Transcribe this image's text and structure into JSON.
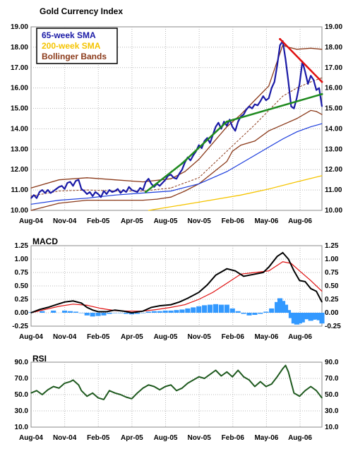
{
  "chart_data": [
    {
      "type": "line",
      "title": "Gold Currency Index",
      "ylim": [
        10,
        19
      ],
      "yticks": [
        "10.00",
        "11.00",
        "12.00",
        "13.00",
        "14.00",
        "15.00",
        "16.00",
        "17.00",
        "18.00",
        "19.00"
      ],
      "xticks": [
        "Aug-04",
        "Nov-04",
        "Feb-05",
        "Apr-05",
        "Aug-05",
        "Nov-05",
        "Feb-06",
        "May-06",
        "Aug-06"
      ],
      "grid": true,
      "legend": {
        "position": "top-left",
        "entries": [
          {
            "label": "65-week SMA",
            "color": "#1a1aa6"
          },
          {
            "label": "200-week SMA",
            "color": "#f5c400"
          },
          {
            "label": "Bollinger Bands",
            "color": "#8b3a1a"
          }
        ]
      },
      "colors": {
        "price": "#1a1aa6",
        "sma65": "#1a3bdc",
        "sma200": "#f5c400",
        "bollinger": "#8b3a1a",
        "midline": "#8b3a1a",
        "resistance": "#e01010",
        "support": "#1f8a1f"
      },
      "series": [
        {
          "key": "price",
          "x": [
            0,
            1,
            2,
            3,
            4,
            5,
            6,
            7,
            8,
            9,
            10,
            11,
            12,
            13,
            14,
            15,
            16,
            17,
            18,
            19,
            20,
            21,
            22,
            23,
            24,
            25,
            26,
            27,
            28,
            29,
            30,
            31,
            32,
            33,
            34,
            35,
            36,
            37,
            38,
            39,
            40,
            41,
            42,
            43,
            44,
            45,
            46,
            47,
            48,
            49,
            50,
            51,
            52,
            53,
            54,
            55,
            56,
            57,
            58,
            59,
            60,
            61,
            62,
            63,
            64,
            65,
            66,
            67,
            68,
            69,
            70,
            71,
            72,
            73,
            74,
            75,
            76,
            77,
            78,
            79,
            80,
            81,
            82,
            83,
            84,
            85,
            86,
            87,
            88,
            89,
            90,
            91,
            92,
            93,
            94,
            95,
            96,
            97,
            98,
            99,
            100,
            101,
            102,
            103,
            104
          ],
          "values": [
            10.6,
            10.75,
            10.6,
            10.9,
            11.0,
            10.85,
            11.0,
            10.85,
            10.95,
            11.05,
            11.15,
            11.2,
            11.05,
            11.35,
            11.4,
            11.2,
            11.45,
            11.5,
            11.05,
            10.95,
            10.8,
            10.9,
            10.7,
            10.9,
            10.8,
            10.65,
            10.95,
            10.8,
            11.0,
            10.9,
            10.95,
            11.05,
            10.85,
            11.0,
            10.9,
            11.15,
            11.0,
            10.95,
            10.9,
            11.1,
            11.0,
            11.4,
            11.55,
            11.3,
            11.15,
            11.3,
            11.2,
            11.35,
            11.5,
            11.7,
            11.75,
            11.6,
            11.55,
            11.8,
            12.0,
            12.35,
            12.6,
            12.45,
            12.7,
            12.9,
            13.2,
            13.05,
            13.4,
            13.55,
            13.3,
            13.7,
            14.1,
            14.3,
            14.0,
            14.35,
            14.15,
            14.45,
            14.1,
            13.9,
            14.35,
            14.6,
            14.7,
            14.95,
            15.1,
            15.0,
            15.2,
            15.15,
            15.35,
            15.6,
            15.4,
            15.5,
            16.0,
            16.3,
            17.1,
            18.1,
            18.3,
            17.4,
            16.3,
            15.1,
            15.0,
            15.5,
            16.2,
            17.3,
            16.8,
            16.2,
            16.6,
            16.4,
            15.9,
            16.0,
            15.1
          ]
        },
        {
          "key": "sma65",
          "x": [
            0,
            10,
            20,
            30,
            40,
            50,
            60,
            70,
            80,
            85,
            90,
            95,
            100,
            104
          ],
          "values": [
            10.3,
            10.5,
            10.6,
            10.75,
            10.85,
            10.95,
            11.3,
            11.9,
            12.7,
            13.1,
            13.5,
            13.85,
            14.1,
            14.25
          ]
        },
        {
          "key": "sma200",
          "x": [
            42,
            60,
            75,
            85,
            95,
            104
          ],
          "values": [
            10.0,
            10.4,
            10.75,
            11.05,
            11.4,
            11.7
          ]
        },
        {
          "key": "mid",
          "x": [
            0,
            10,
            20,
            30,
            40,
            50,
            60,
            70,
            80,
            90,
            95,
            100,
            104
          ],
          "values": [
            10.7,
            10.95,
            11.0,
            10.95,
            10.95,
            11.1,
            11.6,
            12.9,
            14.2,
            15.6,
            16.0,
            16.3,
            16.5
          ]
        },
        {
          "key": "boll_up",
          "x": [
            0,
            10,
            20,
            30,
            40,
            50,
            55,
            60,
            65,
            70,
            75,
            80,
            85,
            88,
            90,
            92,
            95,
            100,
            104
          ],
          "values": [
            11.1,
            11.5,
            11.6,
            11.5,
            11.4,
            11.55,
            11.9,
            12.5,
            13.3,
            14.1,
            14.7,
            15.4,
            16.1,
            17.3,
            18.1,
            18.0,
            17.9,
            17.95,
            17.9
          ]
        },
        {
          "key": "boll_low",
          "x": [
            0,
            10,
            20,
            30,
            40,
            45,
            50,
            55,
            60,
            65,
            70,
            72,
            75,
            80,
            85,
            90,
            95,
            100,
            102,
            104
          ],
          "values": [
            10.0,
            10.35,
            10.5,
            10.5,
            10.5,
            10.55,
            10.65,
            10.95,
            11.3,
            11.85,
            12.4,
            12.9,
            13.2,
            13.4,
            13.9,
            14.2,
            14.5,
            14.9,
            14.85,
            14.7
          ]
        },
        {
          "key": "resistance",
          "x": [
            89,
            104
          ],
          "values": [
            18.4,
            16.3
          ]
        },
        {
          "key": "support",
          "x": [
            41,
            54,
            70,
            104
          ],
          "values": [
            10.9,
            12.3,
            14.35,
            15.7
          ]
        }
      ]
    },
    {
      "type": "line",
      "title": "MACD",
      "ylim": [
        -0.25,
        1.25
      ],
      "yticks": [
        "-0.25",
        "0.00",
        "0.25",
        "0.50",
        "0.75",
        "1.00",
        "1.25"
      ],
      "xticks": [
        "Aug-04",
        "Nov-04",
        "Feb-05",
        "Apr-05",
        "Aug-05",
        "Nov-05",
        "Feb-06",
        "May-06",
        "Aug-06"
      ],
      "grid": true,
      "colors": {
        "macd": "#000000",
        "signal": "#e01010",
        "histogram": "#3399ff"
      },
      "series": [
        {
          "key": "macd",
          "x": [
            0,
            3,
            6,
            9,
            12,
            15,
            18,
            20,
            22,
            24,
            27,
            30,
            33,
            36,
            40,
            43,
            46,
            50,
            53,
            56,
            60,
            63,
            66,
            70,
            73,
            76,
            80,
            83,
            85,
            88,
            90,
            92,
            94,
            96,
            98,
            100,
            102,
            104
          ],
          "values": [
            0.0,
            0.06,
            0.1,
            0.15,
            0.2,
            0.22,
            0.18,
            0.1,
            0.05,
            0.02,
            0.02,
            0.05,
            0.03,
            0.0,
            0.03,
            0.1,
            0.13,
            0.15,
            0.2,
            0.27,
            0.38,
            0.52,
            0.7,
            0.82,
            0.78,
            0.68,
            0.72,
            0.75,
            0.85,
            1.05,
            1.12,
            1.0,
            0.78,
            0.6,
            0.58,
            0.45,
            0.4,
            0.2
          ]
        },
        {
          "key": "signal",
          "x": [
            0,
            5,
            10,
            15,
            20,
            25,
            30,
            35,
            40,
            45,
            50,
            55,
            60,
            65,
            70,
            75,
            80,
            85,
            90,
            93,
            96,
            100,
            104
          ],
          "values": [
            0.0,
            0.06,
            0.12,
            0.16,
            0.14,
            0.08,
            0.04,
            0.03,
            0.03,
            0.06,
            0.1,
            0.15,
            0.25,
            0.38,
            0.55,
            0.72,
            0.75,
            0.78,
            0.95,
            0.92,
            0.78,
            0.6,
            0.4
          ]
        },
        {
          "key": "histogram",
          "x": [
            0,
            4,
            8,
            12,
            14,
            16,
            18,
            20,
            22,
            24,
            26,
            28,
            30,
            32,
            34,
            36,
            38,
            40,
            42,
            44,
            46,
            48,
            50,
            52,
            54,
            56,
            58,
            60,
            62,
            64,
            66,
            68,
            70,
            72,
            74,
            76,
            78,
            80,
            82,
            84,
            86,
            88,
            89,
            90,
            91,
            92,
            93,
            94,
            95,
            96,
            97,
            98,
            99,
            100,
            101,
            102,
            103,
            104
          ],
          "values": [
            0.01,
            0.03,
            0.04,
            0.04,
            0.03,
            0.02,
            0.0,
            -0.05,
            -0.07,
            -0.06,
            -0.05,
            -0.02,
            0.0,
            0.0,
            -0.02,
            -0.03,
            -0.02,
            0.0,
            0.02,
            0.03,
            0.03,
            0.04,
            0.04,
            0.05,
            0.06,
            0.08,
            0.1,
            0.12,
            0.14,
            0.15,
            0.16,
            0.15,
            0.15,
            0.08,
            0.03,
            -0.02,
            -0.05,
            -0.04,
            -0.02,
            0.02,
            0.08,
            0.2,
            0.27,
            0.22,
            0.15,
            0.05,
            -0.1,
            -0.2,
            -0.22,
            -0.2,
            -0.18,
            -0.12,
            -0.12,
            -0.15,
            -0.13,
            -0.12,
            -0.14,
            -0.2
          ]
        }
      ]
    },
    {
      "type": "line",
      "title": "RSI",
      "ylim": [
        10,
        90
      ],
      "yticks": [
        "10.0",
        "30.0",
        "50.0",
        "70.0",
        "90.0"
      ],
      "xticks": [
        "Aug-04",
        "Nov-04",
        "Feb-05",
        "Apr-05",
        "Aug-05",
        "Nov-05",
        "Feb-06",
        "May-06",
        "Aug-06"
      ],
      "grid": true,
      "colors": {
        "rsi": "#1f5a1f"
      },
      "series": [
        {
          "key": "rsi",
          "x": [
            0,
            2,
            4,
            6,
            8,
            10,
            12,
            14,
            15,
            17,
            18,
            20,
            22,
            24,
            26,
            28,
            30,
            32,
            34,
            36,
            38,
            40,
            42,
            44,
            46,
            48,
            50,
            52,
            54,
            56,
            58,
            60,
            62,
            64,
            66,
            68,
            70,
            72,
            74,
            76,
            78,
            80,
            82,
            84,
            86,
            88,
            90,
            91,
            92,
            93,
            94,
            96,
            98,
            100,
            102,
            104
          ],
          "values": [
            52,
            55,
            50,
            56,
            60,
            58,
            64,
            66,
            68,
            62,
            55,
            48,
            52,
            46,
            44,
            55,
            52,
            50,
            47,
            45,
            52,
            58,
            62,
            60,
            56,
            60,
            62,
            55,
            58,
            64,
            68,
            72,
            70,
            75,
            80,
            73,
            78,
            72,
            80,
            72,
            68,
            60,
            66,
            60,
            63,
            72,
            82,
            86,
            78,
            65,
            52,
            48,
            55,
            60,
            55,
            46
          ]
        }
      ]
    }
  ]
}
